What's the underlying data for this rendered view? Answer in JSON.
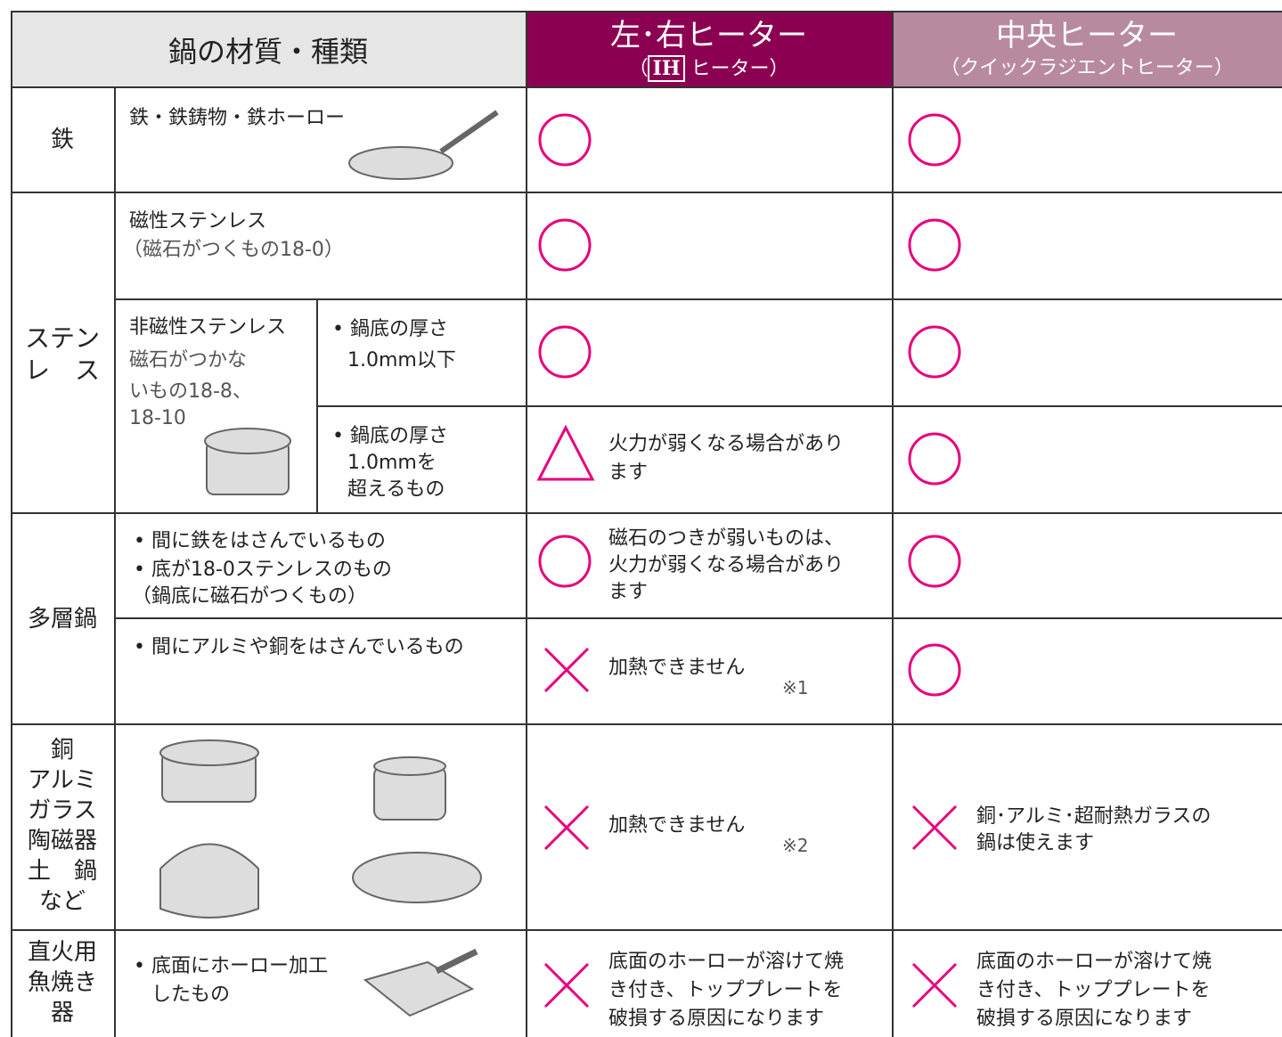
{
  "header": {
    "material": "鍋の材質・種類",
    "left_right": {
      "title": "左･右ヒーター",
      "sub_open": "（",
      "ih": "IH",
      "sub_close": "ヒーター）"
    },
    "center": {
      "title": "中央ヒーター",
      "sub": "（クイックラジエントヒーター）"
    }
  },
  "rows": [
    {
      "category": "鉄",
      "description": "鉄・鉄鋳物・鉄ホーロー"
    },
    {
      "category": [
        "ステン",
        "レ　ス"
      ],
      "magnetic": {
        "title": "磁性ステンレス",
        "sub": "（磁石がつくもの18-0）"
      },
      "non_magnetic": {
        "title": "非磁性ステンレス",
        "sub": [
          "磁石がつかな",
          "いもの18-8、",
          "18-10"
        ],
        "thin": [
          "• 鍋底の厚さ",
          "1.0mm以下"
        ],
        "thick": [
          "• 鍋底の厚さ",
          "1.0mmを",
          "超えるもの"
        ],
        "thick_left_note": [
          "火力が弱くなる場合があり",
          "ます"
        ]
      }
    },
    {
      "category": "多層鍋",
      "iron_core": {
        "description": [
          "• 間に鉄をはさんでいるもの",
          "• 底が18-0ステンレスのもの",
          "（鍋底に磁石がつくもの）"
        ],
        "left_note": [
          "磁石のつきが弱いものは、",
          "火力が弱くなる場合があり",
          "ます"
        ]
      },
      "alu_core": {
        "description": "• 間にアルミや銅をはさんでいるもの",
        "left_note": "加熱できません",
        "footnote": "※1"
      }
    },
    {
      "category": [
        "銅",
        "アルミ",
        "ガラス",
        "陶磁器",
        "土　鍋",
        "など"
      ],
      "left_note": "加熱できません",
      "footnote": "※2",
      "center_note": [
        "銅･アルミ･超耐熱ガラスの",
        "鍋は使えます"
      ]
    },
    {
      "category": [
        "直火用",
        "魚焼き",
        "器"
      ],
      "description": [
        "• 底面にホーロー加工",
        "したもの"
      ],
      "left_note": [
        "底面のホーローが溶けて焼",
        "き付き、トッププレートを",
        "破損する原因になります"
      ],
      "center_note": [
        "底面のホーローが溶けて焼",
        "き付き、トッププレートを",
        "破損する原因になります"
      ]
    }
  ]
}
